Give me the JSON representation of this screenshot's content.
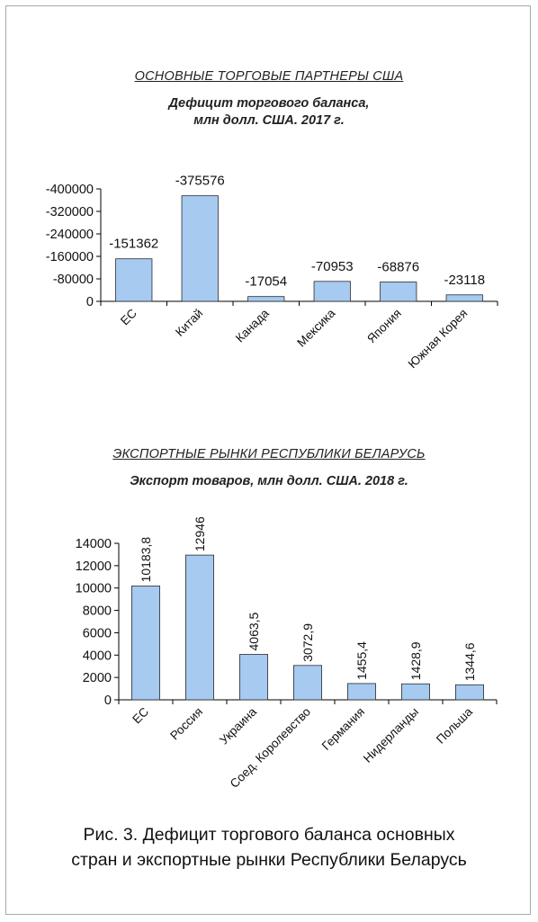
{
  "chart_data": [
    {
      "type": "bar",
      "title": "ОСНОВНЫЕ ТОРГОВЫЕ ПАРТНЕРЫ США",
      "subtitle": [
        "Дефицит торгового баланса,",
        "млн долл. США. 2017 г."
      ],
      "categories": [
        "ЕС",
        "Китай",
        "Канада",
        "Мексика",
        "Япония",
        "Южная Корея"
      ],
      "values": [
        -151362,
        -375576,
        -17054,
        -70953,
        -68876,
        -23118
      ],
      "value_labels": [
        "-151362",
        "-375576",
        "-17054",
        "-70953",
        "-68876",
        "-23118"
      ],
      "y_ticks": [
        0,
        -80000,
        -160000,
        -240000,
        -320000,
        -400000
      ],
      "y_tick_labels": [
        "0",
        "-80000",
        "-160000",
        "-240000",
        "-320000",
        "-400000"
      ],
      "ylim": [
        0,
        -400000
      ],
      "y_reversed": true,
      "grid": false,
      "bar_color": "#a6caf0",
      "xlabel": "",
      "ylabel": ""
    },
    {
      "type": "bar",
      "title": "ЭКСПОРТНЫЕ РЫНКИ РЕСПУБЛИКИ БЕЛАРУСЬ",
      "subtitle": [
        "Экспорт товаров, млн долл. США. 2018 г."
      ],
      "categories": [
        "ЕС",
        "Россия",
        "Украина",
        "Соед. Королевство",
        "Германия",
        "Нидерланды",
        "Польша"
      ],
      "values": [
        10183.8,
        12946,
        4063.5,
        3072.9,
        1455.4,
        1428.9,
        1344.6
      ],
      "value_labels": [
        "10183,8",
        "12946",
        "4063,5",
        "3072,9",
        "1455,4",
        "1428,9",
        "1344,6"
      ],
      "y_ticks": [
        0,
        2000,
        4000,
        6000,
        8000,
        10000,
        12000,
        14000
      ],
      "y_tick_labels": [
        "0",
        "2000",
        "4000",
        "6000",
        "8000",
        "10000",
        "12000",
        "14000"
      ],
      "ylim": [
        0,
        14000
      ],
      "grid": false,
      "bar_color": "#a6caf0",
      "xlabel": "",
      "ylabel": ""
    }
  ],
  "caption": {
    "line1": "Рис. 3.  Дефицит торгового баланса основных",
    "line2": "стран и экспортные рынки Республики Беларусь"
  }
}
